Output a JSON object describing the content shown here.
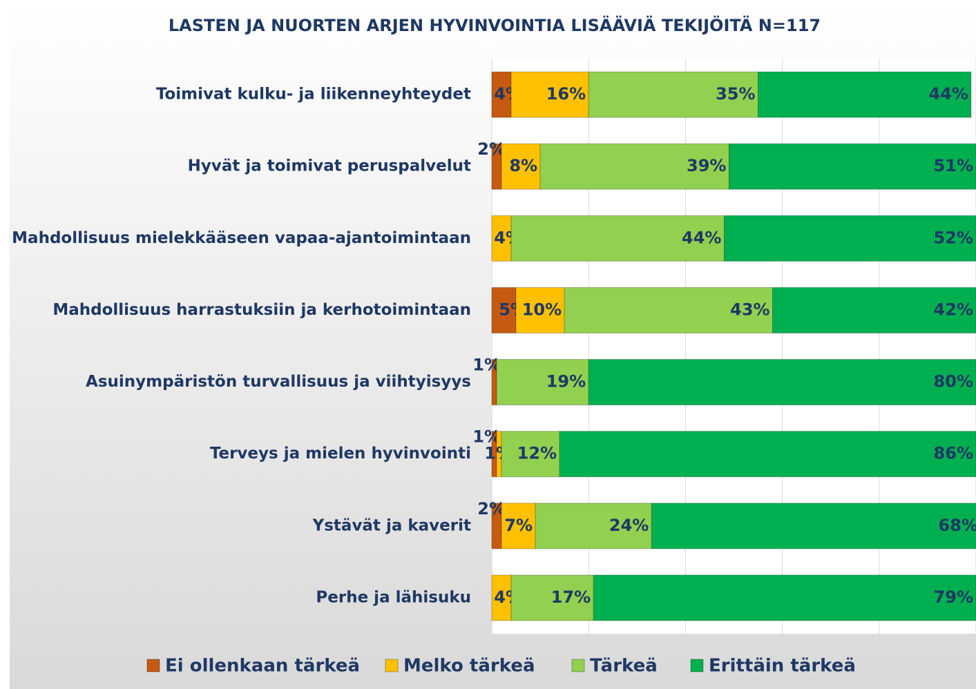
{
  "chart_data": {
    "type": "stacked-bar-horizontal",
    "title": "LASTEN JA NUORTEN ARJEN HYVINVOINTIA LISÄÄVIÄ TEKIJÖITÄ N=117",
    "categories": [
      "Toimivat kulku- ja liikenneyhteydet",
      "Hyvät ja toimivat peruspalvelut",
      "Mahdollisuus mielekkääseen vapaa-ajantoimintaan",
      "Mahdollisuus harrastuksiin ja kerhotoimintaan",
      "Asuinympäristön turvallisuus ja viihtyisyys",
      "Terveys ja mielen hyvinvointi",
      "Ystävät ja kaverit",
      "Perhe ja lähisuku"
    ],
    "series": [
      {
        "name": "Ei ollenkaan tärkeä",
        "color": "#c55a11",
        "values": [
          4,
          2,
          0,
          5,
          1,
          1,
          2,
          0
        ],
        "value_labels": [
          "4%",
          "2%",
          null,
          "5%",
          "1%",
          "1%",
          "2%",
          null
        ]
      },
      {
        "name": "Melko tärkeä",
        "color": "#ffc000",
        "values": [
          16,
          8,
          4,
          10,
          0,
          1,
          7,
          4
        ],
        "value_labels": [
          "16%",
          "8%",
          "4%",
          "10%",
          null,
          "1%",
          "7%",
          "4%"
        ]
      },
      {
        "name": "Tärkeä",
        "color": "#92d050",
        "values": [
          35,
          39,
          44,
          43,
          19,
          12,
          24,
          17
        ],
        "value_labels": [
          "35%",
          "39%",
          "44%",
          "43%",
          "19%",
          "12%",
          "24%",
          "17%"
        ]
      },
      {
        "name": "Erittäin tärkeä",
        "color": "#00b050",
        "values": [
          44,
          51,
          52,
          42,
          80,
          86,
          68,
          79
        ],
        "value_labels": [
          "44%",
          "51%",
          "52%",
          "42%",
          "80%",
          "86%",
          "68%",
          "79%"
        ]
      }
    ],
    "xlim": [
      0,
      100
    ],
    "xticks": [
      0,
      20,
      40,
      60,
      80,
      100
    ],
    "grid": true
  }
}
